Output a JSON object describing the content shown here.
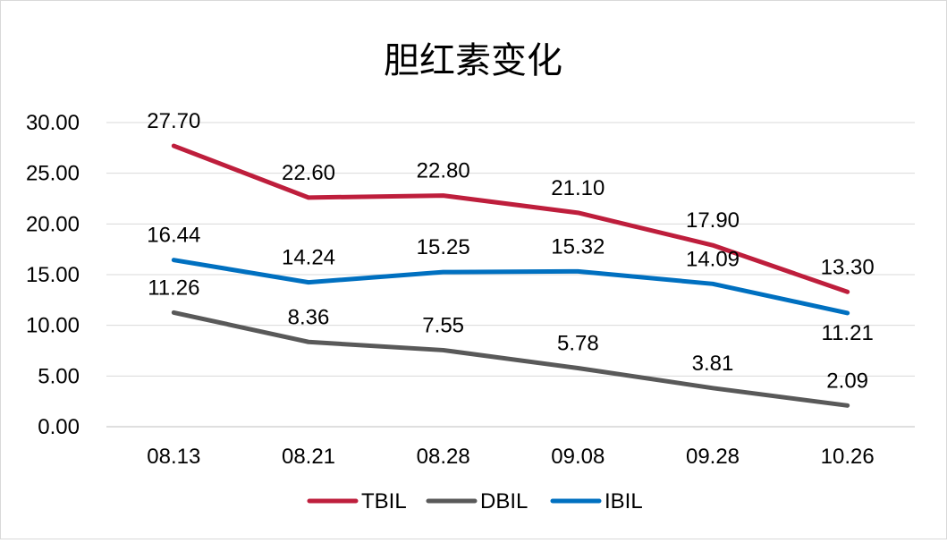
{
  "chart_data": {
    "type": "line",
    "title": "胆红素变化",
    "categories": [
      "08.13",
      "08.21",
      "08.28",
      "09.08",
      "09.28",
      "10.26"
    ],
    "ylim": [
      0,
      30
    ],
    "ytick_labels": [
      "0.00",
      "5.00",
      "10.00",
      "15.00",
      "20.00",
      "25.00",
      "30.00"
    ],
    "grid": true,
    "legend_position": "bottom",
    "series": [
      {
        "name": "TBIL",
        "color": "#be1e3c",
        "values": [
          27.7,
          22.6,
          22.8,
          21.1,
          17.9,
          13.3
        ],
        "labels": [
          "27.70",
          "22.60",
          "22.80",
          "21.10",
          "17.90",
          "13.30"
        ]
      },
      {
        "name": "DBIL",
        "color": "#595959",
        "values": [
          11.26,
          8.36,
          7.55,
          5.78,
          3.81,
          2.09
        ],
        "labels": [
          "11.26",
          "8.36",
          "7.55",
          "5.78",
          "3.81",
          "2.09"
        ]
      },
      {
        "name": "IBIL",
        "color": "#0070c0",
        "values": [
          16.44,
          14.24,
          15.25,
          15.32,
          14.09,
          11.21
        ],
        "labels": [
          "16.44",
          "14.24",
          "15.25",
          "15.32",
          "14.09",
          "11.21"
        ]
      }
    ]
  }
}
